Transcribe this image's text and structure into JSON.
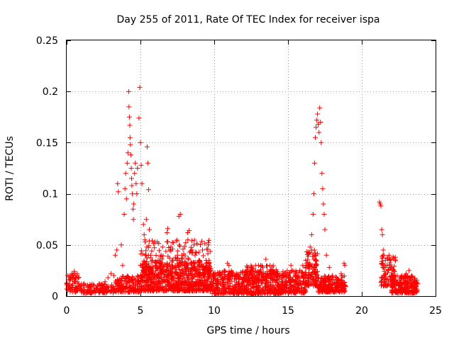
{
  "chart_data": {
    "type": "scatter",
    "title": "Day 255 of 2011, Rate Of TEC Index for receiver ispa",
    "xlabel": "GPS time / hours",
    "ylabel": "ROTI / TECUs",
    "xlim": [
      0,
      25
    ],
    "ylim": [
      0,
      0.25
    ],
    "xticks": [
      "0",
      "5",
      "10",
      "15",
      "20",
      "25"
    ],
    "yticks": [
      "0",
      "0.05",
      "0.1",
      "0.15",
      "0.2",
      "0.25"
    ],
    "grid": true,
    "marker": "+",
    "color": "#ff0000",
    "series": [
      {
        "points": [
          [
            0.0,
            0.012
          ],
          [
            0.1,
            0.008
          ],
          [
            0.2,
            0.015
          ],
          [
            0.25,
            0.02
          ],
          [
            0.3,
            0.018
          ],
          [
            0.35,
            0.022
          ],
          [
            0.4,
            0.012
          ],
          [
            0.5,
            0.024
          ],
          [
            0.6,
            0.018
          ],
          [
            0.7,
            0.02
          ],
          [
            0.8,
            0.01
          ],
          [
            0.9,
            0.008
          ],
          [
            1.0,
            0.006
          ],
          [
            1.2,
            0.012
          ],
          [
            1.4,
            0.006
          ],
          [
            1.6,
            0.008
          ],
          [
            1.8,
            0.004
          ],
          [
            2.0,
            0.008
          ],
          [
            2.2,
            0.012
          ],
          [
            2.4,
            0.01
          ],
          [
            2.6,
            0.014
          ],
          [
            2.8,
            0.018
          ],
          [
            3.0,
            0.022
          ],
          [
            3.2,
            0.02
          ],
          [
            3.3,
            0.04
          ],
          [
            3.4,
            0.045
          ],
          [
            3.45,
            0.11
          ],
          [
            3.5,
            0.102
          ],
          [
            3.7,
            0.05
          ],
          [
            3.8,
            0.03
          ],
          [
            3.9,
            0.08
          ],
          [
            3.95,
            0.105
          ],
          [
            4.0,
            0.12
          ],
          [
            4.05,
            0.095
          ],
          [
            4.1,
            0.13
          ],
          [
            4.15,
            0.14
          ],
          [
            4.2,
            0.2
          ],
          [
            4.22,
            0.185
          ],
          [
            4.25,
            0.175
          ],
          [
            4.28,
            0.167
          ],
          [
            4.3,
            0.155
          ],
          [
            4.32,
            0.148
          ],
          [
            4.35,
            0.138
          ],
          [
            4.38,
            0.125
          ],
          [
            4.4,
            0.115
          ],
          [
            4.42,
            0.108
          ],
          [
            4.45,
            0.1
          ],
          [
            4.5,
            0.085
          ],
          [
            4.52,
            0.075
          ],
          [
            4.55,
            0.09
          ],
          [
            4.6,
            0.12
          ],
          [
            4.65,
            0.13
          ],
          [
            4.7,
            0.11
          ],
          [
            4.75,
            0.1
          ],
          [
            4.8,
            0.125
          ],
          [
            4.9,
            0.174
          ],
          [
            4.95,
            0.204
          ],
          [
            5.0,
            0.15
          ],
          [
            5.05,
            0.128
          ],
          [
            5.1,
            0.11
          ],
          [
            5.2,
            0.07
          ],
          [
            5.25,
            0.06
          ],
          [
            5.3,
            0.055
          ],
          [
            5.4,
            0.075
          ],
          [
            5.45,
            0.146
          ],
          [
            5.5,
            0.13
          ],
          [
            5.55,
            0.104
          ],
          [
            5.6,
            0.065
          ],
          [
            5.7,
            0.04
          ],
          [
            5.8,
            0.035
          ],
          [
            6.0,
            0.03
          ],
          [
            6.2,
            0.035
          ],
          [
            6.4,
            0.04
          ],
          [
            6.5,
            0.048
          ],
          [
            6.8,
            0.062
          ],
          [
            6.85,
            0.066
          ],
          [
            7.0,
            0.045
          ],
          [
            7.2,
            0.035
          ],
          [
            7.5,
            0.04
          ],
          [
            7.6,
            0.078
          ],
          [
            7.7,
            0.08
          ],
          [
            7.8,
            0.04
          ],
          [
            8.0,
            0.03
          ],
          [
            8.2,
            0.062
          ],
          [
            8.3,
            0.064
          ],
          [
            8.5,
            0.045
          ],
          [
            8.7,
            0.04
          ],
          [
            9.0,
            0.035
          ],
          [
            9.2,
            0.028
          ],
          [
            9.5,
            0.046
          ],
          [
            9.6,
            0.05
          ],
          [
            10.0,
            0.02
          ],
          [
            10.5,
            0.018
          ],
          [
            10.9,
            0.032
          ],
          [
            11.0,
            0.03
          ],
          [
            11.5,
            0.022
          ],
          [
            12.0,
            0.018
          ],
          [
            12.5,
            0.024
          ],
          [
            12.8,
            0.03
          ],
          [
            13.0,
            0.03
          ],
          [
            13.3,
            0.028
          ],
          [
            13.5,
            0.036
          ],
          [
            13.7,
            0.02
          ],
          [
            14.0,
            0.025
          ],
          [
            14.3,
            0.02
          ],
          [
            14.6,
            0.018
          ],
          [
            15.0,
            0.02
          ],
          [
            15.2,
            0.03
          ],
          [
            15.3,
            0.025
          ],
          [
            15.5,
            0.02
          ],
          [
            15.8,
            0.025
          ],
          [
            16.0,
            0.03
          ],
          [
            16.2,
            0.035
          ],
          [
            16.4,
            0.042
          ],
          [
            16.5,
            0.048
          ],
          [
            16.6,
            0.06
          ],
          [
            16.7,
            0.08
          ],
          [
            16.75,
            0.1
          ],
          [
            16.8,
            0.13
          ],
          [
            16.85,
            0.155
          ],
          [
            16.9,
            0.165
          ],
          [
            16.95,
            0.172
          ],
          [
            17.0,
            0.178
          ],
          [
            17.05,
            0.168
          ],
          [
            17.1,
            0.16
          ],
          [
            17.15,
            0.184
          ],
          [
            17.2,
            0.17
          ],
          [
            17.25,
            0.15
          ],
          [
            17.3,
            0.12
          ],
          [
            17.35,
            0.105
          ],
          [
            17.4,
            0.09
          ],
          [
            17.45,
            0.08
          ],
          [
            17.5,
            0.065
          ],
          [
            17.6,
            0.04
          ],
          [
            17.8,
            0.028
          ],
          [
            18.0,
            0.02
          ],
          [
            18.3,
            0.018
          ],
          [
            18.6,
            0.022
          ],
          [
            18.8,
            0.032
          ],
          [
            18.85,
            0.03
          ],
          [
            21.2,
            0.092
          ],
          [
            21.25,
            0.09
          ],
          [
            21.3,
            0.088
          ],
          [
            21.35,
            0.065
          ],
          [
            21.4,
            0.06
          ],
          [
            21.45,
            0.045
          ],
          [
            21.5,
            0.04
          ],
          [
            21.6,
            0.035
          ],
          [
            21.7,
            0.03
          ],
          [
            21.8,
            0.025
          ],
          [
            21.9,
            0.035
          ],
          [
            22.0,
            0.02
          ],
          [
            22.2,
            0.015
          ],
          [
            22.4,
            0.02
          ],
          [
            22.6,
            0.012
          ],
          [
            22.8,
            0.018
          ],
          [
            23.0,
            0.022
          ],
          [
            23.2,
            0.025
          ],
          [
            23.4,
            0.02
          ],
          [
            23.6,
            0.015
          ],
          [
            23.8,
            0.012
          ]
        ],
        "clusters": [
          {
            "x": [
              0.0,
              0.9
            ],
            "y": [
              0.004,
              0.022
            ],
            "n": 60
          },
          {
            "x": [
              0.9,
              3.2
            ],
            "y": [
              0.003,
              0.012
            ],
            "n": 120
          },
          {
            "x": [
              3.2,
              5.0
            ],
            "y": [
              0.004,
              0.02
            ],
            "n": 160
          },
          {
            "x": [
              5.0,
              9.8
            ],
            "y": [
              0.005,
              0.035
            ],
            "n": 700
          },
          {
            "x": [
              5.0,
              9.8
            ],
            "y": [
              0.02,
              0.055
            ],
            "n": 160
          },
          {
            "x": [
              9.8,
              14.5
            ],
            "y": [
              0.002,
              0.025
            ],
            "n": 500
          },
          {
            "x": [
              12.0,
              14.2
            ],
            "y": [
              0.015,
              0.03
            ],
            "n": 90
          },
          {
            "x": [
              14.5,
              16.2
            ],
            "y": [
              0.003,
              0.025
            ],
            "n": 200
          },
          {
            "x": [
              16.2,
              17.0
            ],
            "y": [
              0.01,
              0.045
            ],
            "n": 120
          },
          {
            "x": [
              17.0,
              18.9
            ],
            "y": [
              0.004,
              0.02
            ],
            "n": 200
          },
          {
            "x": [
              21.3,
              22.3
            ],
            "y": [
              0.01,
              0.04
            ],
            "n": 100
          },
          {
            "x": [
              22.0,
              23.8
            ],
            "y": [
              0.003,
              0.02
            ],
            "n": 200
          }
        ]
      }
    ]
  }
}
